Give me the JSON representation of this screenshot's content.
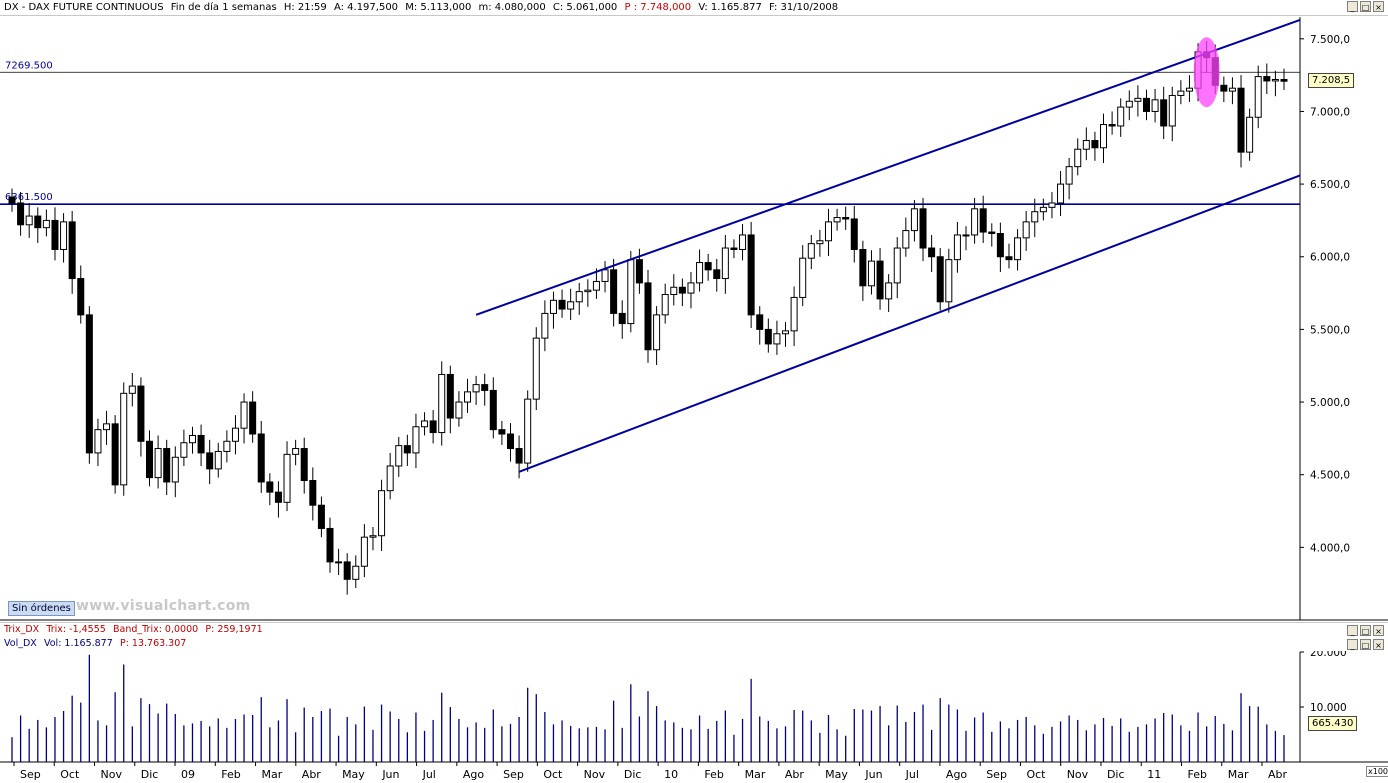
{
  "header": {
    "symbol": "DX - DAX FUTURE CONTINUOUS",
    "period": "Fin de día 1 semanas",
    "h": "H: 21:59",
    "a": "A: 4.197,500",
    "m": "M: 5.113,000",
    "mn": "m: 4.080,000",
    "c": "C: 5.061,000",
    "p": "P : 7.748,000",
    "v": "V: 1.165.877",
    "f": "F: 31/10/2008"
  },
  "window_buttons": [
    "_",
    "□",
    "×"
  ],
  "orders_label": "Sin órdenes",
  "watermark": "www.visualchart.com",
  "indicators": {
    "trix": {
      "name": "Trix_DX",
      "trix": "Trix: -1,4555",
      "band": "Band_Trix: 0,0000",
      "p": "P: 259,1971"
    },
    "vol": {
      "name": "Vol_DX",
      "vol": "Vol: 1.165.877",
      "p": "P: 13.763.307"
    }
  },
  "price_badge": "7.208,5",
  "vol_badge": "665.430",
  "vol_scale_label": "x100",
  "colors": {
    "line": "#0000a0",
    "candle_up": "#ffffff",
    "candle_down": "#000000",
    "highlight": "#ff44ff",
    "volume": "#000080"
  },
  "chart_data": {
    "type": "candlestick",
    "ylim": [
      3500,
      7650
    ],
    "yticks": [
      "7.500,0",
      "7.000,0",
      "6.500,0",
      "6.000,0",
      "5.500,0",
      "5.000,0",
      "4.500,0",
      "4.000,0"
    ],
    "ytick_values": [
      7500,
      7000,
      6500,
      6000,
      5500,
      5000,
      4500,
      4000
    ],
    "x_labels": [
      "Sep",
      "Oct",
      "Nov",
      "Dic",
      "09",
      "Feb",
      "Mar",
      "Abr",
      "May",
      "Jun",
      "Jul",
      "Ago",
      "Sep",
      "Oct",
      "Nov",
      "Dic",
      "10",
      "Feb",
      "Mar",
      "Abr",
      "May",
      "Jun",
      "Jul",
      "Ago",
      "Sep",
      "Oct",
      "Nov",
      "Dic",
      "11",
      "Feb",
      "Mar",
      "Abr"
    ],
    "hlines": [
      {
        "value": 7269.5,
        "label": "7269.500"
      },
      {
        "value": 6361.5,
        "label": "6361.500"
      }
    ],
    "closes": [
      6370,
      6220,
      6280,
      6200,
      6250,
      6050,
      6240,
      5850,
      5600,
      4650,
      4810,
      4850,
      4430,
      5060,
      5110,
      4730,
      4480,
      4680,
      4450,
      4620,
      4720,
      4770,
      4650,
      4540,
      4660,
      4730,
      4820,
      5000,
      4780,
      4450,
      4380,
      4310,
      4640,
      4680,
      4460,
      4290,
      4130,
      3900,
      3900,
      3780,
      3870,
      4070,
      4080,
      4390,
      4560,
      4700,
      4650,
      4830,
      4870,
      4790,
      5190,
      4890,
      5000,
      5070,
      5120,
      5080,
      4810,
      4780,
      4680,
      4580,
      5020,
      5440,
      5610,
      5700,
      5640,
      5690,
      5760,
      5770,
      5830,
      5910,
      5610,
      5540,
      5980,
      5820,
      5360,
      5600,
      5740,
      5790,
      5750,
      5820,
      5960,
      5910,
      5850,
      6060,
      6050,
      6150,
      5600,
      5500,
      5400,
      5470,
      5490,
      5720,
      5990,
      6090,
      6110,
      6240,
      6270,
      6260,
      6050,
      5800,
      5970,
      5710,
      5820,
      6060,
      6180,
      6330,
      6060,
      6000,
      5690,
      5980,
      6150,
      6150,
      6330,
      6170,
      6160,
      6000,
      5980,
      6130,
      6240,
      6310,
      6340,
      6370,
      6500,
      6620,
      6740,
      6800,
      6750,
      6910,
      6900,
      7030,
      7070,
      7090,
      7000,
      7080,
      6900,
      7110,
      7140,
      7160,
      7410,
      7370,
      7180,
      7140,
      7160,
      6720,
      6960,
      7240,
      7210,
      7220,
      7208
    ],
    "volume": {
      "ylim": [
        0,
        20000
      ],
      "yticks": [
        "20.000",
        "10.000"
      ],
      "ytick_values": [
        20000,
        10000
      ]
    }
  }
}
